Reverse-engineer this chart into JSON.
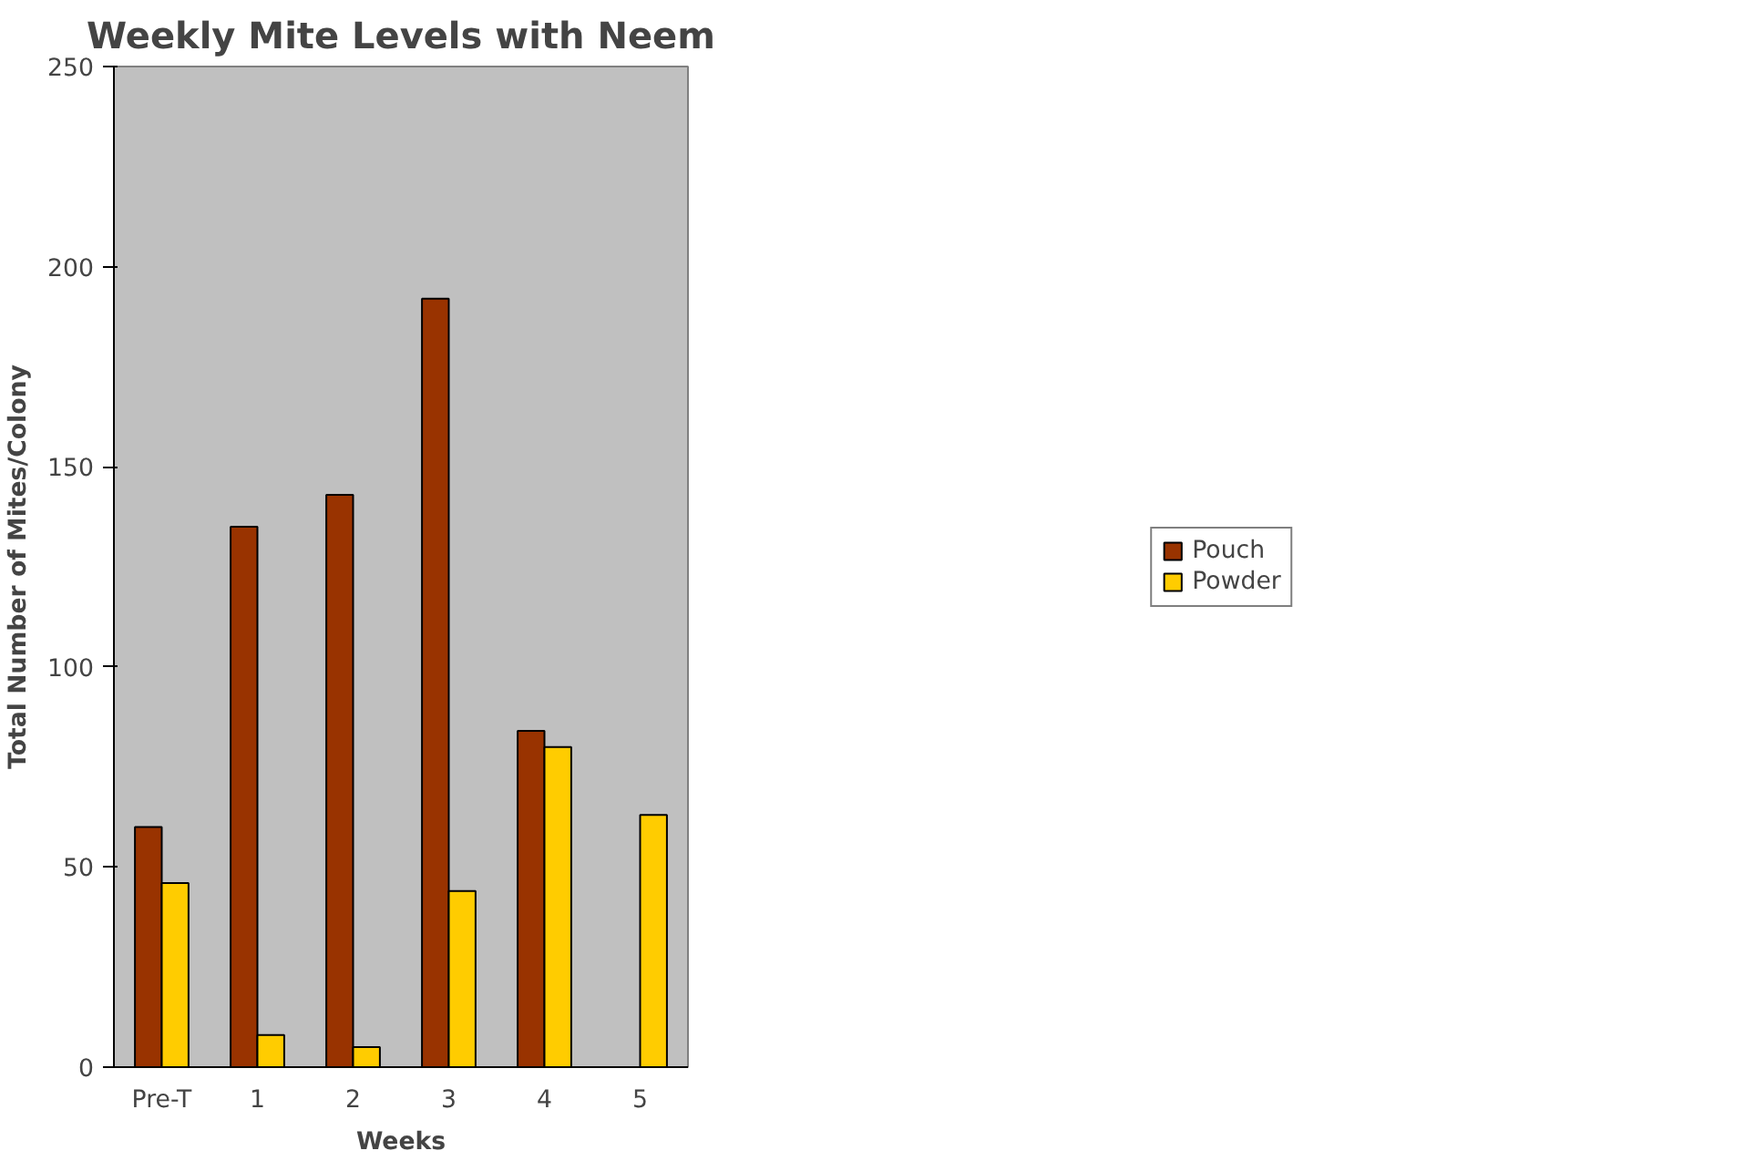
{
  "chart_data": {
    "type": "bar",
    "title": "Weekly Mite Levels with Neem",
    "xlabel": "Weeks",
    "ylabel": "Total Number of Mites/Colony",
    "categories": [
      "Pre-T",
      "1",
      "2",
      "3",
      "4",
      "5"
    ],
    "series": [
      {
        "name": "Pouch",
        "color": "#993300",
        "values": [
          60,
          135,
          143,
          192,
          84,
          null
        ]
      },
      {
        "name": "Powder",
        "color": "#ffcc00",
        "values": [
          46,
          8,
          5,
          44,
          80,
          63
        ]
      }
    ],
    "ylim": [
      0,
      250
    ],
    "yticks": [
      0,
      50,
      100,
      150,
      200,
      250
    ],
    "grid": false,
    "legend": "right"
  }
}
